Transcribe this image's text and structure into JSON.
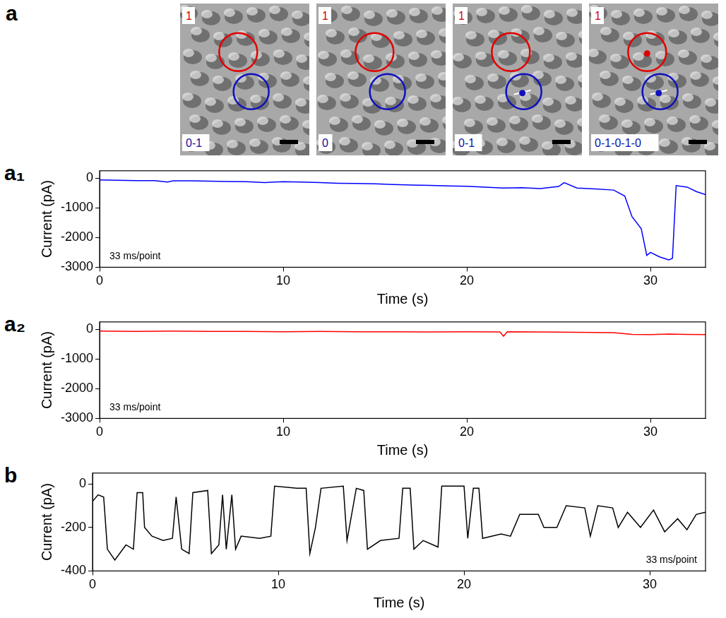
{
  "panel": "a",
  "images": [
    {
      "top_label": "1",
      "bottom_label": "0-1"
    },
    {
      "top_label": "1",
      "bottom_label": "0"
    },
    {
      "top_label": "1",
      "bottom_label": "0-1"
    },
    {
      "top_label": "1",
      "bottom_label": "0-1-0-1-0"
    }
  ],
  "chart_data": [
    {
      "type": "line",
      "panel": "a₁",
      "xlabel": "Time (s)",
      "ylabel": "Current (pA)",
      "annotation": "33 ms/point",
      "x": [
        0,
        1,
        2,
        3,
        3.7,
        4,
        5,
        6,
        7,
        8,
        9,
        9.5,
        10,
        11,
        12,
        13,
        14,
        15,
        16,
        17,
        18,
        19,
        20,
        21,
        22,
        23,
        24,
        25,
        25.3,
        26,
        27,
        28,
        28.6,
        29,
        29.5,
        29.8,
        30,
        30.5,
        31,
        31.2,
        31.4,
        32,
        32.5,
        33
      ],
      "values": [
        -60,
        -70,
        -80,
        -80,
        -130,
        -90,
        -90,
        -100,
        -110,
        -120,
        -150,
        -130,
        -120,
        -130,
        -150,
        -170,
        -180,
        -190,
        -210,
        -230,
        -240,
        -260,
        -270,
        -300,
        -330,
        -320,
        -350,
        -280,
        -150,
        -330,
        -360,
        -400,
        -600,
        -1300,
        -1700,
        -2600,
        -2500,
        -2650,
        -2750,
        -2700,
        -250,
        -300,
        -450,
        -550
      ],
      "color": "#0000ff",
      "xlim": [
        0,
        33
      ],
      "xticks": [
        0,
        10,
        20,
        30
      ],
      "ylim": [
        -3000,
        250
      ],
      "yticks": [
        -3000,
        -2000,
        -1000,
        0
      ],
      "grid": false
    },
    {
      "type": "line",
      "panel": "a₂",
      "xlabel": "Time (s)",
      "ylabel": "Current (pA)",
      "annotation": "33 ms/point",
      "x": [
        0,
        2,
        4,
        6,
        8,
        10,
        12,
        14,
        16,
        18,
        20,
        21.8,
        22,
        22.2,
        24,
        26,
        28,
        29,
        30,
        31,
        32,
        33
      ],
      "values": [
        -60,
        -70,
        -60,
        -70,
        -70,
        -80,
        -70,
        -80,
        -80,
        -90,
        -80,
        -90,
        -230,
        -80,
        -90,
        -100,
        -110,
        -170,
        -180,
        -160,
        -170,
        -180
      ],
      "color": "#ff0000",
      "xlim": [
        0,
        33
      ],
      "xticks": [
        0,
        10,
        20,
        30
      ],
      "ylim": [
        -3000,
        250
      ],
      "yticks": [
        -3000,
        -2000,
        -1000,
        0
      ],
      "grid": false
    },
    {
      "type": "line",
      "panel": "b",
      "xlabel": "Time (s)",
      "ylabel": "Current (pA)",
      "annotation": "33 ms/point",
      "x": [
        0,
        0.3,
        0.6,
        0.8,
        1.2,
        1.8,
        2.2,
        2.4,
        2.7,
        2.8,
        3.2,
        3.8,
        4.3,
        4.5,
        4.8,
        5.2,
        5.4,
        6.2,
        6.4,
        6.8,
        7.0,
        7.2,
        7.5,
        7.7,
        8.0,
        9.0,
        9.6,
        9.8,
        11.0,
        11.5,
        11.7,
        12.0,
        12.3,
        13.5,
        13.7,
        14.2,
        14.6,
        14.8,
        15.5,
        16.5,
        16.7,
        17.1,
        17.3,
        17.8,
        18.6,
        18.8,
        20.0,
        20.2,
        20.5,
        20.8,
        21.0,
        22.0,
        22.5,
        23.0,
        24.0,
        24.3,
        25.0,
        25.5,
        26.5,
        26.8,
        27.2,
        28.0,
        28.3,
        28.8,
        29.5,
        30.2,
        30.8,
        31.5,
        32.0,
        32.5,
        33.0
      ],
      "values": [
        -80,
        -50,
        -60,
        -300,
        -350,
        -280,
        -300,
        -40,
        -40,
        -200,
        -240,
        -260,
        -250,
        -60,
        -300,
        -320,
        -40,
        -30,
        -320,
        -280,
        -50,
        -300,
        -50,
        -300,
        -240,
        -250,
        -240,
        -10,
        -20,
        -20,
        -320,
        -200,
        -20,
        -10,
        -260,
        -20,
        -30,
        -300,
        -260,
        -250,
        -20,
        -20,
        -300,
        -260,
        -290,
        -10,
        -10,
        -250,
        -20,
        -20,
        -250,
        -230,
        -240,
        -140,
        -140,
        -200,
        -200,
        -100,
        -110,
        -240,
        -100,
        -110,
        -200,
        -130,
        -200,
        -120,
        -220,
        -160,
        -210,
        -140,
        -130
      ],
      "color": "#000000",
      "xlim": [
        0,
        33
      ],
      "xticks": [
        0,
        10,
        20,
        30
      ],
      "ylim": [
        -400,
        50
      ],
      "yticks": [
        -400,
        -200,
        0
      ],
      "grid": false
    }
  ]
}
